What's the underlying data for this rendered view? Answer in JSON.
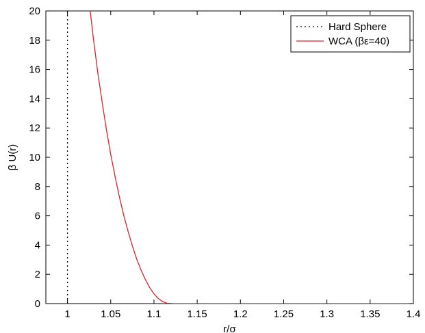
{
  "chart_data": {
    "type": "line",
    "xlabel": "r/σ",
    "ylabel": "β U(r)",
    "xlim": [
      0.975,
      1.4
    ],
    "ylim": [
      0,
      20
    ],
    "xticks": [
      1,
      1.05,
      1.1,
      1.15,
      1.2,
      1.25,
      1.3,
      1.35,
      1.4
    ],
    "xtick_labels": [
      "1",
      "1.05",
      "1.1",
      "1.15",
      "1.2",
      "1.25",
      "1.3",
      "1.35",
      "1.4"
    ],
    "yticks": [
      0,
      2,
      4,
      6,
      8,
      10,
      12,
      14,
      16,
      18,
      20
    ],
    "ytick_labels": [
      "0",
      "2",
      "4",
      "6",
      "8",
      "10",
      "12",
      "14",
      "16",
      "18",
      "20"
    ],
    "grid": false,
    "legend_position": "top-right",
    "series": [
      {
        "name": "Hard Sphere",
        "style": "dotted",
        "color": "#000000",
        "x": [
          1,
          1
        ],
        "y": [
          0,
          20
        ]
      },
      {
        "name": "WCA (βε=40)",
        "style": "solid",
        "color": "#e0202a",
        "x": [
          1.0263,
          1.03,
          1.035,
          1.04,
          1.045,
          1.05,
          1.055,
          1.06,
          1.065,
          1.07,
          1.075,
          1.08,
          1.085,
          1.09,
          1.095,
          1.1,
          1.105,
          1.11,
          1.115,
          1.1225,
          1.2,
          1.3,
          1.4
        ],
        "y": [
          20.0,
          18.1,
          15.8,
          13.8,
          11.9,
          10.2,
          8.7,
          7.3,
          6.05,
          4.95,
          3.95,
          3.05,
          2.3,
          1.65,
          1.1,
          0.67,
          0.35,
          0.14,
          0.03,
          0,
          0,
          0,
          0
        ]
      }
    ]
  }
}
